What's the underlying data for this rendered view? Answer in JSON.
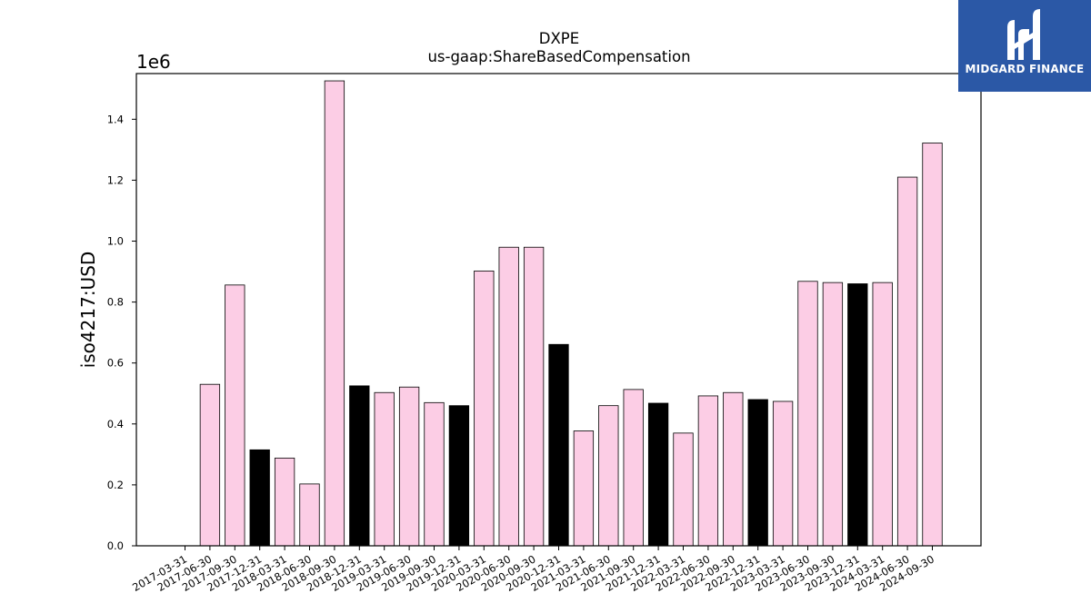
{
  "logo": {
    "text": "MIDGARD FINANCE",
    "bg_color": "#2b58a6"
  },
  "chart_data": {
    "type": "bar",
    "title": "DXPE",
    "subtitle": "us-gaap:ShareBasedCompensation",
    "ylabel": "iso4217:USD",
    "y_scale_label": "1e6",
    "ylim": [
      0,
      1550000
    ],
    "y_ticks": [
      0,
      200000,
      400000,
      600000,
      800000,
      1000000,
      1200000,
      1400000
    ],
    "y_tick_labels": [
      "0.0",
      "0.2",
      "0.4",
      "0.6",
      "0.8",
      "1.0",
      "1.2",
      "1.4"
    ],
    "grid": false,
    "colors": {
      "quarter": "#fccde5",
      "year_end": "#000000",
      "edge": "#000000"
    },
    "categories": [
      "2017-03-31",
      "2017-06-30",
      "2017-09-30",
      "2017-12-31",
      "2018-03-31",
      "2018-06-30",
      "2018-09-30",
      "2018-12-31",
      "2019-03-31",
      "2019-06-30",
      "2019-09-30",
      "2019-12-31",
      "2020-03-31",
      "2020-06-30",
      "2020-09-30",
      "2020-12-31",
      "2021-03-31",
      "2021-06-30",
      "2021-09-30",
      "2021-12-31",
      "2022-03-31",
      "2022-06-30",
      "2022-09-30",
      "2022-12-31",
      "2023-03-31",
      "2023-06-30",
      "2023-09-30",
      "2023-12-31",
      "2024-03-31",
      "2024-06-30",
      "2024-09-30"
    ],
    "values": [
      null,
      530000,
      856000,
      315000,
      288000,
      203000,
      1526000,
      525000,
      503000,
      521000,
      470000,
      460000,
      902000,
      980000,
      980000,
      661000,
      377000,
      460000,
      513000,
      468000,
      370000,
      492000,
      503000,
      480000,
      474000,
      868000,
      864000,
      860000,
      864000,
      1210000,
      1322000
    ]
  }
}
